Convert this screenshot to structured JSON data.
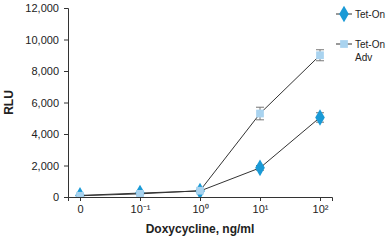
{
  "chart_data": {
    "type": "line",
    "x_label": "Doxycycline, ng/ml",
    "y_label": "RLU",
    "categories": [
      "0",
      "10⁻¹",
      "10⁰",
      "10¹",
      "10²"
    ],
    "series": [
      {
        "name": "Tet-On",
        "color": "#1a9ad6",
        "marker": "diamond",
        "values": [
          100,
          250,
          380,
          1850,
          5050
        ],
        "errors": [
          30,
          40,
          50,
          150,
          300
        ]
      },
      {
        "name": "Tet-On Adv",
        "color": "#a9d3ef",
        "marker": "square",
        "values": [
          80,
          200,
          400,
          5300,
          9000
        ],
        "errors": [
          20,
          30,
          40,
          400,
          350
        ]
      }
    ],
    "ylim": [
      0,
      12000
    ],
    "yticks": [
      0,
      {
        "value": 2000,
        "label": "2,000"
      },
      {
        "value": 4000,
        "label": "4,000"
      },
      {
        "value": 6000,
        "label": "6,000"
      },
      {
        "value": 8000,
        "label": "8,000"
      },
      {
        "value": 10000,
        "label": "10,000"
      },
      {
        "value": 12000,
        "label": "12,000"
      }
    ],
    "grid": false,
    "legend": "right"
  }
}
